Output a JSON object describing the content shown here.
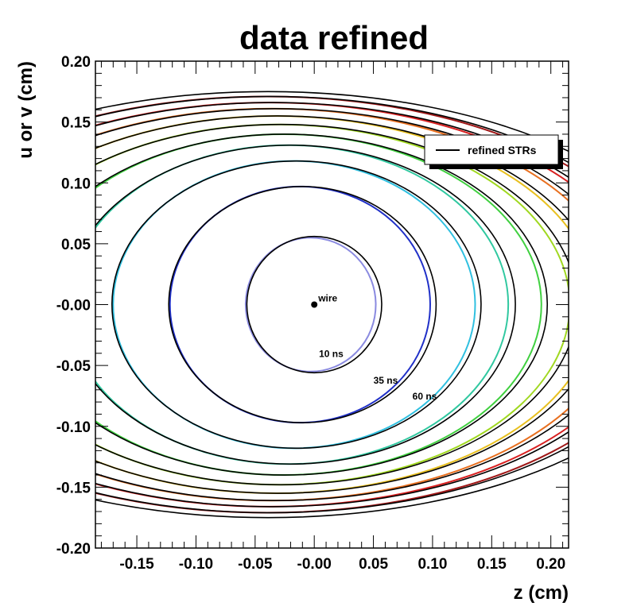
{
  "chart_data": {
    "type": "line",
    "title": "data refined",
    "xlabel": "z (cm)",
    "ylabel": "u or v (cm)",
    "xlim": [
      -0.185,
      0.215
    ],
    "ylim": [
      -0.2,
      0.2
    ],
    "x_ticks": [
      "-0.15",
      "-0.10",
      "-0.05",
      "-0.00",
      "0.05",
      "0.10",
      "0.15",
      "0.20"
    ],
    "y_ticks": [
      "0.20",
      "0.15",
      "0.10",
      "0.05",
      "-0.00",
      "-0.05",
      "-0.10",
      "-0.15",
      "-0.20"
    ],
    "x_tick_values": [
      -0.15,
      -0.1,
      -0.05,
      0.0,
      0.05,
      0.1,
      0.15,
      0.2
    ],
    "y_tick_values": [
      0.2,
      0.15,
      0.1,
      0.05,
      0.0,
      -0.05,
      -0.1,
      -0.15,
      -0.2
    ],
    "grid": false,
    "legend": {
      "entries": [
        "refined STRs"
      ],
      "placement": "top-right",
      "line_color": "#000000"
    },
    "wire": {
      "x": 0.0,
      "y": 0.0,
      "label": "wire"
    },
    "annotations": [
      {
        "text": "10 ns",
        "x": 0.004,
        "y": -0.043
      },
      {
        "text": "35 ns",
        "x": 0.05,
        "y": -0.065
      },
      {
        "text": "60 ns",
        "x": 0.083,
        "y": -0.078
      }
    ],
    "series": [
      {
        "name": "refined STRs",
        "color": "#000000",
        "contours": [
          {
            "cx": 0.0,
            "cy": 0.0,
            "rx": 0.057,
            "ry": 0.056
          },
          {
            "cx": -0.01,
            "cy": 0.0,
            "rx": 0.113,
            "ry": 0.097
          },
          {
            "cx": -0.015,
            "cy": 0.0,
            "rx": 0.156,
            "ry": 0.118
          },
          {
            "cx": -0.02,
            "cy": 0.0,
            "rx": 0.19,
            "ry": 0.131
          },
          {
            "cx": -0.025,
            "cy": 0.0,
            "rx": 0.222,
            "ry": 0.14
          },
          {
            "cx": -0.028,
            "cy": 0.0,
            "rx": 0.25,
            "ry": 0.148
          },
          {
            "cx": -0.031,
            "cy": 0.0,
            "rx": 0.275,
            "ry": 0.155
          },
          {
            "cx": -0.033,
            "cy": 0.0,
            "rx": 0.3,
            "ry": 0.161
          },
          {
            "cx": -0.035,
            "cy": 0.0,
            "rx": 0.322,
            "ry": 0.166
          },
          {
            "cx": -0.037,
            "cy": 0.0,
            "rx": 0.345,
            "ry": 0.171
          },
          {
            "cx": -0.039,
            "cy": 0.0,
            "rx": 0.366,
            "ry": 0.175
          }
        ]
      },
      {
        "name": "",
        "color": "#8a8ae0",
        "contours": [
          {
            "cx": -0.003,
            "cy": 0.0,
            "rx": 0.055,
            "ry": 0.055
          }
        ]
      },
      {
        "name": "",
        "color": "#2030c8",
        "contours": [
          {
            "cx": -0.012,
            "cy": 0.0,
            "rx": 0.11,
            "ry": 0.097
          }
        ]
      },
      {
        "name": "",
        "color": "#30c0e0",
        "contours": [
          {
            "cx": -0.017,
            "cy": 0.0,
            "rx": 0.153,
            "ry": 0.118
          }
        ]
      },
      {
        "name": "",
        "color": "#30c8a0",
        "contours": [
          {
            "cx": -0.022,
            "cy": 0.0,
            "rx": 0.186,
            "ry": 0.131
          }
        ]
      },
      {
        "name": "",
        "color": "#40d040",
        "contours": [
          {
            "cx": -0.026,
            "cy": 0.0,
            "rx": 0.218,
            "ry": 0.14
          }
        ]
      },
      {
        "name": "",
        "color": "#a0d820",
        "contours": [
          {
            "cx": -0.03,
            "cy": 0.0,
            "rx": 0.246,
            "ry": 0.148
          }
        ]
      },
      {
        "name": "",
        "color": "#e8c020",
        "contours": [
          {
            "cx": -0.033,
            "cy": 0.0,
            "rx": 0.271,
            "ry": 0.155
          }
        ]
      },
      {
        "name": "",
        "color": "#e87020",
        "contours": [
          {
            "cx": -0.036,
            "cy": 0.0,
            "rx": 0.296,
            "ry": 0.161
          }
        ]
      },
      {
        "name": "",
        "color": "#d82020",
        "contours": [
          {
            "cx": -0.038,
            "cy": 0.0,
            "rx": 0.318,
            "ry": 0.166
          }
        ]
      },
      {
        "name": "",
        "color": "#a01818",
        "contours": [
          {
            "cx": -0.04,
            "cy": 0.0,
            "rx": 0.341,
            "ry": 0.171
          }
        ]
      }
    ]
  }
}
